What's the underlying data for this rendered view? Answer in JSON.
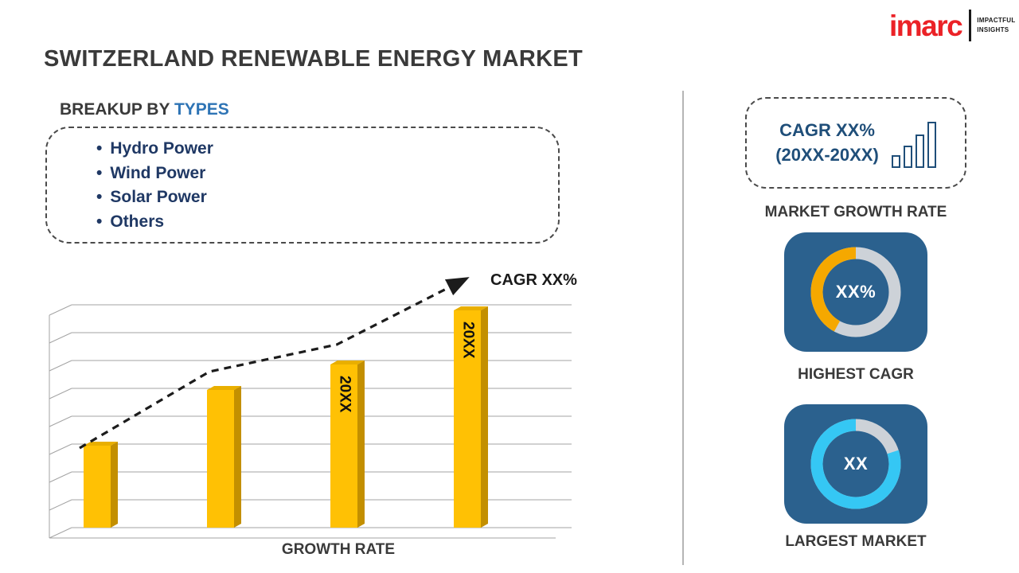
{
  "title": "SWITZERLAND RENEWABLE ENERGY MARKET",
  "logo": {
    "brand": "imarc",
    "tagline_line1": "IMPACTFUL",
    "tagline_line2": "INSIGHTS",
    "brand_color": "#EB2227"
  },
  "breakup": {
    "heading_prefix": "BREAKUP BY ",
    "heading_highlight": "TYPES",
    "highlight_color": "#2E74B5",
    "items": [
      "Hydro Power",
      "Wind Power",
      "Solar Power",
      "Others"
    ]
  },
  "chart_data": {
    "type": "bar",
    "bar_labels": [
      "",
      "",
      "20XX",
      "20XX"
    ],
    "values_relative": [
      103,
      173,
      205,
      273
    ],
    "axis_label": "GROWTH RATE",
    "trend_annotation": "CAGR XX%",
    "gridline_count": 9,
    "legend": "none",
    "colors": {
      "bar": "#FFC104",
      "bar_side": "#C38F00",
      "bar_top": "#E9AF00",
      "trend": "#1C1C1C",
      "grid": "#A3A3A3"
    }
  },
  "sidebar": {
    "growth_card": {
      "line1": "CAGR XX%",
      "line2": "(20XX-20XX)",
      "text_color": "#1F4E79"
    },
    "market_growth_label": "MARKET GROWTH RATE",
    "highest_cagr": {
      "value": "XX%",
      "label": "HIGHEST CAGR",
      "arc_pct": 42,
      "arc_color": "#F5A800",
      "track_color": "#CDD2D8",
      "card_color": "#2B618E"
    },
    "largest_market": {
      "value": "XX",
      "label": "LARGEST MARKET",
      "arc_pct": 80,
      "arc_color": "#35C7F4",
      "track_color": "#CDD2D8",
      "card_color": "#2B618E"
    }
  }
}
